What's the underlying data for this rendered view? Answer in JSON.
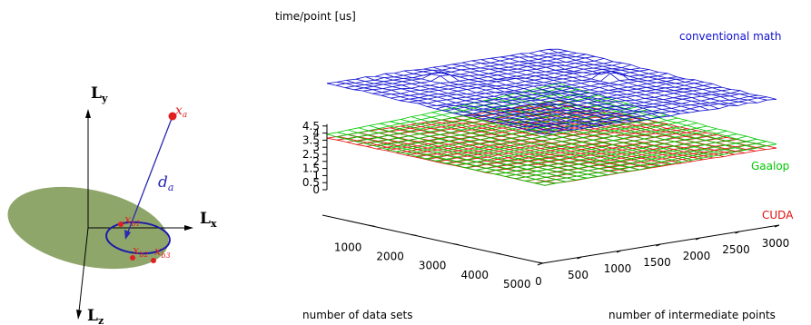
{
  "diagram": {
    "axis_y_label": "L",
    "axis_y_sub": "y",
    "axis_x_label": "L",
    "axis_x_sub": "x",
    "axis_z_label": "L",
    "axis_z_sub": "z",
    "point_a_label": "x",
    "point_a_sub": "a",
    "distance_label": "d",
    "distance_sub": "a",
    "point_b1_label": "x",
    "point_b1_sub": "b1",
    "point_b2_label": "x",
    "point_b2_sub": "b2",
    "point_b3_label": "x",
    "point_b3_sub": "b3",
    "colors": {
      "plane": "#8fa66b",
      "circle": "#1a1aa8",
      "points": "#e02020",
      "arrow": "#2a2ab0"
    }
  },
  "chart_data": {
    "type": "surface3d",
    "title": "",
    "zlabel": "time/point [us]",
    "xlabel": "number of data sets",
    "ylabel": "number of intermediate points",
    "zlim": [
      0,
      4.5
    ],
    "z_ticks": [
      "4.5",
      "4",
      "3.5",
      "3",
      "2.5",
      "2",
      "1.5",
      "1",
      "0.5",
      "0"
    ],
    "x_ticks": [
      "1000",
      "2000",
      "3000",
      "4000",
      "5000"
    ],
    "y_ticks": [
      "0",
      "500",
      "1000",
      "1500",
      "2000",
      "2500",
      "3000"
    ],
    "legend_placement": "right",
    "series": [
      {
        "name": "conventional math",
        "color": "#1010d0",
        "z_range": [
          3.3,
          4.3
        ]
      },
      {
        "name": "Gaalop",
        "color": "#00c800",
        "z_range": [
          0.3,
          1.6
        ]
      },
      {
        "name": "CUDA",
        "color": "#e01010",
        "z_range": [
          0.3,
          0.5
        ]
      }
    ]
  }
}
